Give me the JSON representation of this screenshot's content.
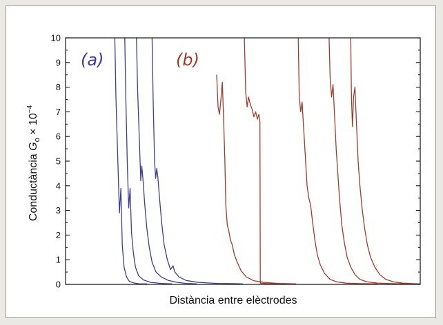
{
  "chart_data": {
    "type": "line",
    "xlabel": "Distància entre elèctrodes",
    "ylabel": {
      "prefix": "Conductància ",
      "symbol": "G",
      "subscript": "o",
      "times": " × 10",
      "exponent": "−4"
    },
    "ylim": [
      0,
      10
    ],
    "xlim": [
      0,
      100
    ],
    "y_ticks": [
      "0",
      "1",
      "2",
      "3",
      "4",
      "5",
      "6",
      "7",
      "8",
      "9",
      "10"
    ],
    "x_ticks_labeled": false,
    "grid": false,
    "panel_labels": [
      {
        "text": "(a)",
        "color": "#3c3c96"
      },
      {
        "text": "(b)",
        "color": "#a23a2c"
      }
    ],
    "series": [
      {
        "group": "(a)",
        "color": "#3c3c96",
        "points": [
          [
            13.9,
            10
          ],
          [
            14.2,
            7.6
          ],
          [
            14.8,
            4.7
          ],
          [
            15.2,
            2.9
          ],
          [
            15.6,
            3.9
          ],
          [
            16.0,
            1.6
          ],
          [
            16.5,
            0.7
          ],
          [
            17.2,
            0.3
          ],
          [
            18.0,
            0.12
          ],
          [
            19.5,
            0.05
          ],
          [
            20.8,
            0.02
          ],
          [
            23.0,
            0.02
          ]
        ]
      },
      {
        "group": "(a)",
        "color": "#3c3c96",
        "points": [
          [
            16.7,
            10
          ],
          [
            17.0,
            7.5
          ],
          [
            17.4,
            5.0
          ],
          [
            17.8,
            3.1
          ],
          [
            18.2,
            3.9
          ],
          [
            18.6,
            2.1
          ],
          [
            19.1,
            1.3
          ],
          [
            19.7,
            0.7
          ],
          [
            20.6,
            0.35
          ],
          [
            22.0,
            0.18
          ],
          [
            24.0,
            0.08
          ],
          [
            27.0,
            0.04
          ],
          [
            30.0,
            0.02
          ]
        ]
      },
      {
        "group": "(a)",
        "color": "#3c3c96",
        "points": [
          [
            20.0,
            10
          ],
          [
            20.3,
            8.0
          ],
          [
            20.7,
            6.3
          ],
          [
            21.2,
            4.2
          ],
          [
            21.5,
            4.8
          ],
          [
            21.8,
            4.3
          ],
          [
            22.3,
            3.3
          ],
          [
            22.9,
            2.3
          ],
          [
            23.6,
            1.5
          ],
          [
            24.4,
            0.9
          ],
          [
            25.5,
            0.5
          ],
          [
            27.0,
            0.3
          ],
          [
            29.0,
            0.16
          ],
          [
            31.5,
            0.08
          ],
          [
            34.0,
            0.04
          ],
          [
            37.0,
            0.02
          ]
        ]
      },
      {
        "group": "(a)",
        "color": "#3c3c96",
        "points": [
          [
            24.4,
            10
          ],
          [
            24.7,
            7.4
          ],
          [
            25.1,
            5.0
          ],
          [
            25.4,
            4.3
          ],
          [
            25.7,
            4.7
          ],
          [
            26.0,
            4.4
          ],
          [
            26.5,
            3.5
          ],
          [
            27.1,
            2.5
          ],
          [
            27.8,
            1.6
          ],
          [
            28.7,
            1.0
          ],
          [
            29.6,
            0.6
          ],
          [
            30.3,
            0.75
          ],
          [
            30.8,
            0.5
          ],
          [
            32.0,
            0.3
          ],
          [
            34.0,
            0.16
          ],
          [
            37.0,
            0.09
          ],
          [
            40.0,
            0.06
          ],
          [
            43.0,
            0.04
          ],
          [
            47.0,
            0.03
          ],
          [
            50.0,
            0.02
          ]
        ]
      },
      {
        "group": "(b)",
        "color": "#a23a2c",
        "points": [
          [
            42.6,
            8.5
          ],
          [
            43.0,
            7.2
          ],
          [
            43.4,
            6.9
          ],
          [
            43.8,
            7.5
          ],
          [
            44.2,
            8.2
          ],
          [
            44.5,
            7.0
          ],
          [
            44.9,
            5.1
          ],
          [
            45.2,
            3.2
          ],
          [
            45.6,
            2.4
          ],
          [
            46.0,
            2.2
          ],
          [
            46.5,
            1.8
          ],
          [
            47.0,
            1.6
          ],
          [
            47.6,
            1.2
          ],
          [
            48.4,
            0.9
          ],
          [
            49.5,
            0.55
          ],
          [
            51.0,
            0.3
          ],
          [
            53.0,
            0.15
          ],
          [
            56.0,
            0.08
          ],
          [
            60.0,
            0.04
          ],
          [
            65.0,
            0.02
          ]
        ]
      },
      {
        "group": "(b)",
        "color": "#a23a2c",
        "points": [
          [
            50.4,
            10
          ],
          [
            50.8,
            7.8
          ],
          [
            51.2,
            7.2
          ],
          [
            51.6,
            7.6
          ],
          [
            52.1,
            7.3
          ],
          [
            52.6,
            7.1
          ],
          [
            53.1,
            6.8
          ],
          [
            53.6,
            7.0
          ],
          [
            54.1,
            6.7
          ],
          [
            54.5,
            6.9
          ],
          [
            54.8,
            6.6
          ],
          [
            54.9,
            0.05
          ],
          [
            57.0,
            0.03
          ],
          [
            62.0,
            0.02
          ]
        ]
      },
      {
        "group": "(b)",
        "color": "#a23a2c",
        "points": [
          [
            65.6,
            10
          ],
          [
            65.9,
            7.6
          ],
          [
            66.3,
            7.0
          ],
          [
            66.7,
            7.4
          ],
          [
            67.1,
            6.4
          ],
          [
            67.6,
            5.2
          ],
          [
            68.1,
            4.0
          ],
          [
            68.6,
            3.5
          ],
          [
            69.1,
            3.2
          ],
          [
            69.6,
            2.6
          ],
          [
            70.3,
            1.8
          ],
          [
            71.0,
            1.2
          ],
          [
            71.8,
            0.8
          ],
          [
            73.0,
            0.45
          ],
          [
            74.6,
            0.2
          ],
          [
            76.5,
            0.1
          ],
          [
            79.0,
            0.05
          ],
          [
            83.0,
            0.03
          ],
          [
            88.0,
            0.02
          ]
        ]
      },
      {
        "group": "(b)",
        "color": "#a23a2c",
        "points": [
          [
            74.3,
            10
          ],
          [
            74.6,
            8.4
          ],
          [
            75.0,
            7.6
          ],
          [
            75.4,
            8.1
          ],
          [
            75.8,
            7.0
          ],
          [
            76.3,
            5.5
          ],
          [
            76.8,
            4.4
          ],
          [
            77.3,
            3.4
          ],
          [
            77.9,
            2.4
          ],
          [
            78.6,
            1.7
          ],
          [
            79.4,
            1.1
          ],
          [
            80.4,
            0.7
          ],
          [
            81.6,
            0.4
          ],
          [
            83.0,
            0.2
          ],
          [
            85.0,
            0.1
          ],
          [
            88.0,
            0.05
          ],
          [
            92.0,
            0.03
          ],
          [
            97.0,
            0.02
          ]
        ]
      },
      {
        "group": "(b)",
        "color": "#a23a2c",
        "points": [
          [
            80.4,
            10
          ],
          [
            80.6,
            7.6
          ],
          [
            80.9,
            6.4
          ],
          [
            81.2,
            7.6
          ],
          [
            81.6,
            8.0
          ],
          [
            82.0,
            6.6
          ],
          [
            82.5,
            5.0
          ],
          [
            83.0,
            4.0
          ],
          [
            83.6,
            3.1
          ],
          [
            84.3,
            2.3
          ],
          [
            85.1,
            1.6
          ],
          [
            86.0,
            1.1
          ],
          [
            87.2,
            0.7
          ],
          [
            88.6,
            0.4
          ],
          [
            90.3,
            0.2
          ],
          [
            92.5,
            0.1
          ],
          [
            95.0,
            0.05
          ],
          [
            98.0,
            0.03
          ],
          [
            100.0,
            0.02
          ]
        ]
      }
    ]
  }
}
